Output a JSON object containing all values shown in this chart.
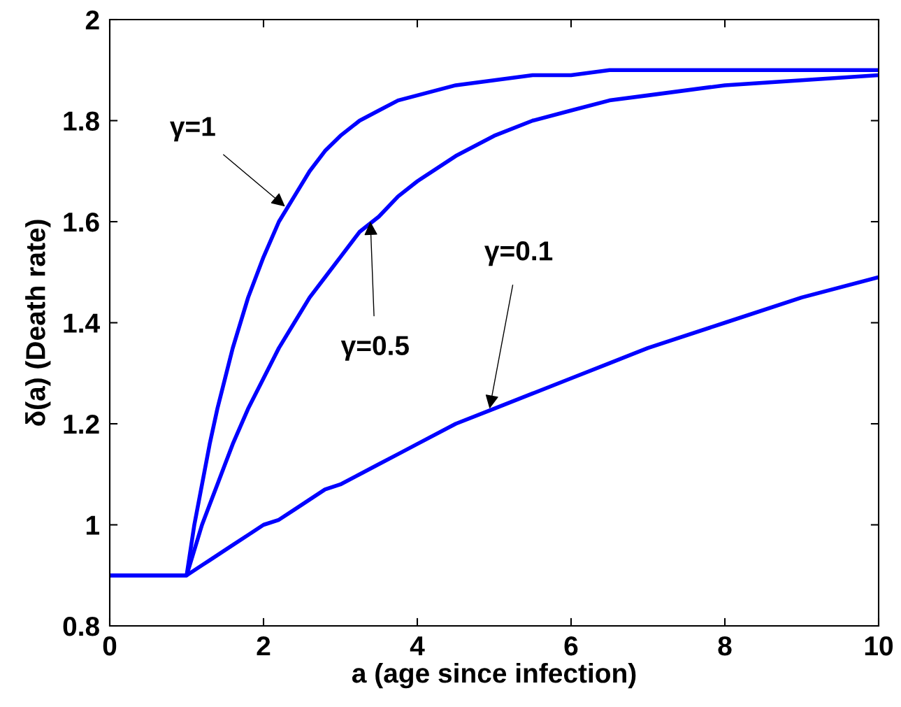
{
  "chart_data": {
    "type": "line",
    "xlabel": "a (age since infection)",
    "ylabel": "δ(a) (Death rate)",
    "xlim": [
      0,
      10
    ],
    "ylim": [
      0.8,
      2
    ],
    "xticks": [
      0,
      2,
      4,
      6,
      8,
      10
    ],
    "yticks": [
      0.8,
      1,
      1.2,
      1.4,
      1.6,
      1.8,
      2
    ],
    "grid": false,
    "legend": false,
    "marker": "none",
    "line_style": "solid",
    "x": [
      0,
      1,
      1.1,
      1.2,
      1.3,
      1.4,
      1.5,
      1.6,
      1.8,
      2,
      2.2,
      2.4,
      2.6,
      2.8,
      3,
      3.25,
      3.5,
      3.75,
      4,
      4.5,
      5,
      5.5,
      6,
      6.5,
      7,
      8,
      9,
      10
    ],
    "series": [
      {
        "color": "#0000ff",
        "values": [
          0.9,
          0.9,
          1.0,
          1.08,
          1.16,
          1.23,
          1.29,
          1.35,
          1.45,
          1.53,
          1.6,
          1.65,
          1.7,
          1.74,
          1.77,
          1.8,
          1.82,
          1.84,
          1.85,
          1.87,
          1.88,
          1.89,
          1.89,
          1.9,
          1.9,
          1.9,
          1.9,
          1.9
        ]
      },
      {
        "color": "#0000ff",
        "values": [
          0.9,
          0.9,
          0.95,
          1.0,
          1.04,
          1.08,
          1.12,
          1.16,
          1.23,
          1.29,
          1.35,
          1.4,
          1.45,
          1.49,
          1.53,
          1.58,
          1.61,
          1.65,
          1.68,
          1.73,
          1.77,
          1.8,
          1.82,
          1.84,
          1.85,
          1.87,
          1.88,
          1.89
        ]
      },
      {
        "color": "#0000ff",
        "values": [
          0.9,
          0.9,
          0.91,
          0.92,
          0.93,
          0.94,
          0.95,
          0.96,
          0.98,
          1.0,
          1.01,
          1.03,
          1.05,
          1.07,
          1.08,
          1.1,
          1.12,
          1.14,
          1.16,
          1.2,
          1.23,
          1.26,
          1.29,
          1.32,
          1.35,
          1.4,
          1.45,
          1.49
        ]
      }
    ],
    "annotations": [
      {
        "text": "γ=1",
        "x": 2.28,
        "y": 1.63
      },
      {
        "text": "γ=0.5",
        "x": 3.39,
        "y": 1.6
      },
      {
        "text": "γ=0.1",
        "x": 4.94,
        "y": 1.23
      }
    ]
  }
}
